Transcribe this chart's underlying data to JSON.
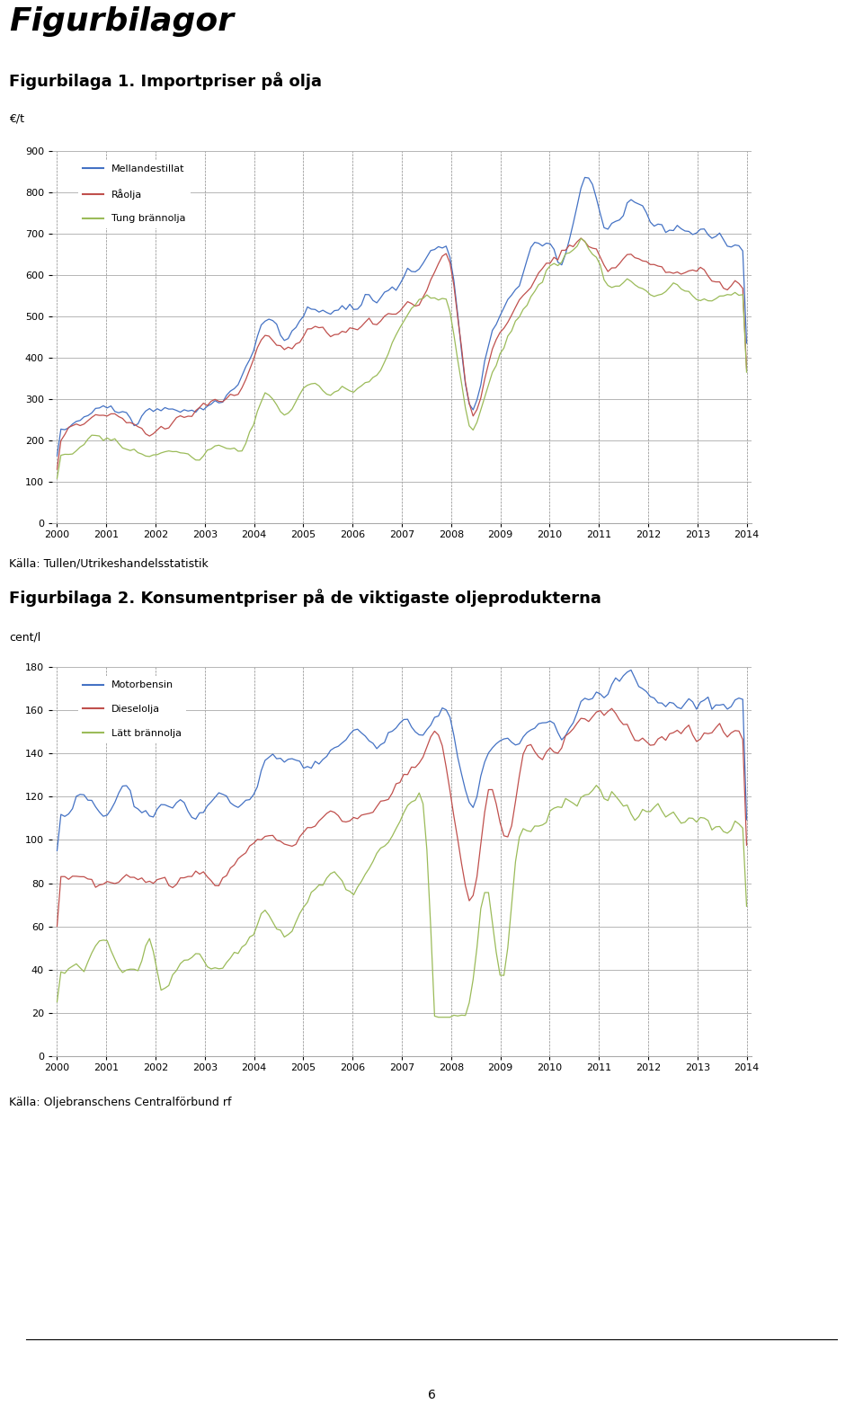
{
  "page_title": "Figurbilagor",
  "chart1_title": "Figurbilaga 1. Importpriser på olja",
  "chart1_ylabel": "€/t",
  "chart1_ylim": [
    0,
    900
  ],
  "chart1_yticks": [
    0,
    100,
    200,
    300,
    400,
    500,
    600,
    700,
    800,
    900
  ],
  "chart1_legend": [
    "Mellandestillat",
    "Råolja",
    "Tung brännolja"
  ],
  "chart1_colors": [
    "#4472C4",
    "#C0504D",
    "#9BBB59"
  ],
  "chart1_source": "Källa: Tullen/Utrikeshandelsstatistik",
  "chart2_title": "Figurbilaga 2. Konsumentpriser på de viktigaste oljeprodukterna",
  "chart2_ylabel": "cent/l",
  "chart2_ylim": [
    0,
    180
  ],
  "chart2_yticks": [
    0,
    20,
    40,
    60,
    80,
    100,
    120,
    140,
    160,
    180
  ],
  "chart2_legend": [
    "Motorbensin",
    "Dieselolja",
    "Lätt brännolja"
  ],
  "chart2_colors": [
    "#4472C4",
    "#C0504D",
    "#9BBB59"
  ],
  "chart2_source": "Källa: Oljebranschens Centralförbund rf",
  "page_number": "6"
}
